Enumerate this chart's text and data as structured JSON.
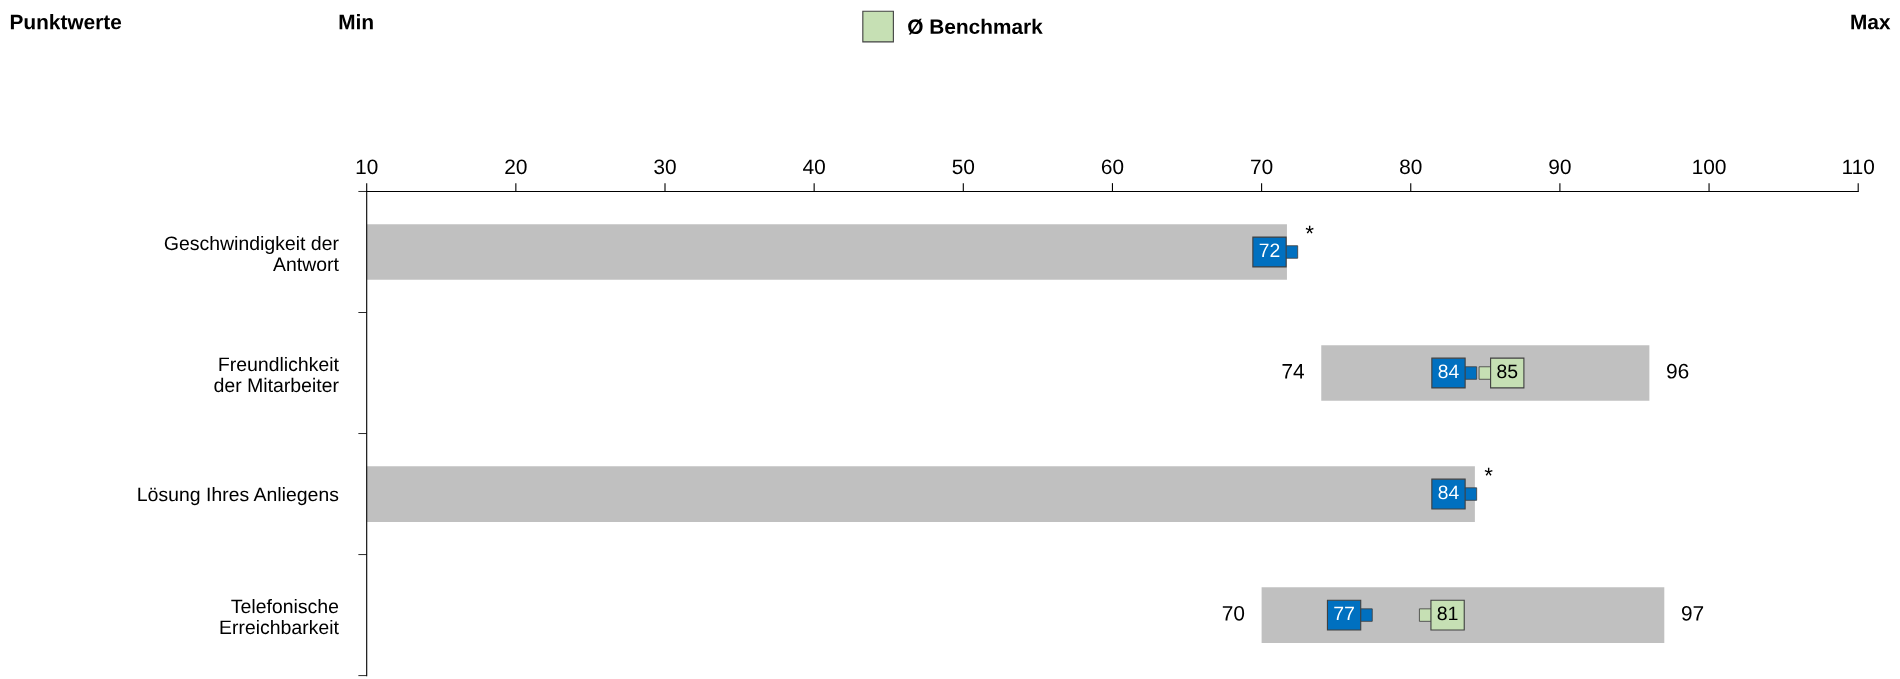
{
  "chart_data": {
    "type": "bar",
    "orientation": "horizontal",
    "title": "Punktwerte",
    "categories": [
      "Geschwindigkeit der\nAntwort",
      "Freundlichkeit\nder Mitarbeiter",
      "Lösung Ihres Anliegens",
      "Telefonische\nErreichbarkeit"
    ],
    "series": [
      {
        "type": "bar",
        "color": "#c0c0c0",
        "base": [
          10,
          74,
          10,
          70
        ],
        "values": [
          61.7,
          22,
          74.3,
          27
        ]
      },
      {
        "type": "scatter",
        "color": "#0070c0",
        "values": [
          72,
          84,
          84,
          77
        ],
        "value_labels": [
          "72",
          "84",
          "84",
          "77"
        ]
      },
      {
        "name": "Ø Benchmark",
        "type": "scatter",
        "color": "#c6e0b4",
        "values": [
          null,
          85,
          null,
          81
        ],
        "value_labels": [
          null,
          "85",
          null,
          "81"
        ]
      }
    ],
    "xlim": [
      10,
      110
    ],
    "xticks": [
      10,
      20,
      30,
      40,
      50,
      60,
      70,
      80,
      90,
      100,
      110
    ],
    "legend": "top",
    "marker": "square",
    "grid": false,
    "annotations": [
      "Min",
      "Max",
      {
        "text": "74",
        "x": 74,
        "y": "Freundlichkeit\nder Mitarbeiter"
      },
      {
        "text": "96",
        "x": 96,
        "y": "Freundlichkeit\nder Mitarbeiter"
      },
      {
        "text": "70",
        "x": 70,
        "y": "Telefonische\nErreichbarkeit"
      },
      {
        "text": "97",
        "x": 97,
        "y": "Telefonische\nErreichbarkeit"
      },
      {
        "text": "*",
        "x": 72,
        "y": "Geschwindigkeit der\nAntwort"
      },
      {
        "text": "*",
        "x": 84,
        "y": "Lösung Ihres Anliegens"
      }
    ]
  }
}
